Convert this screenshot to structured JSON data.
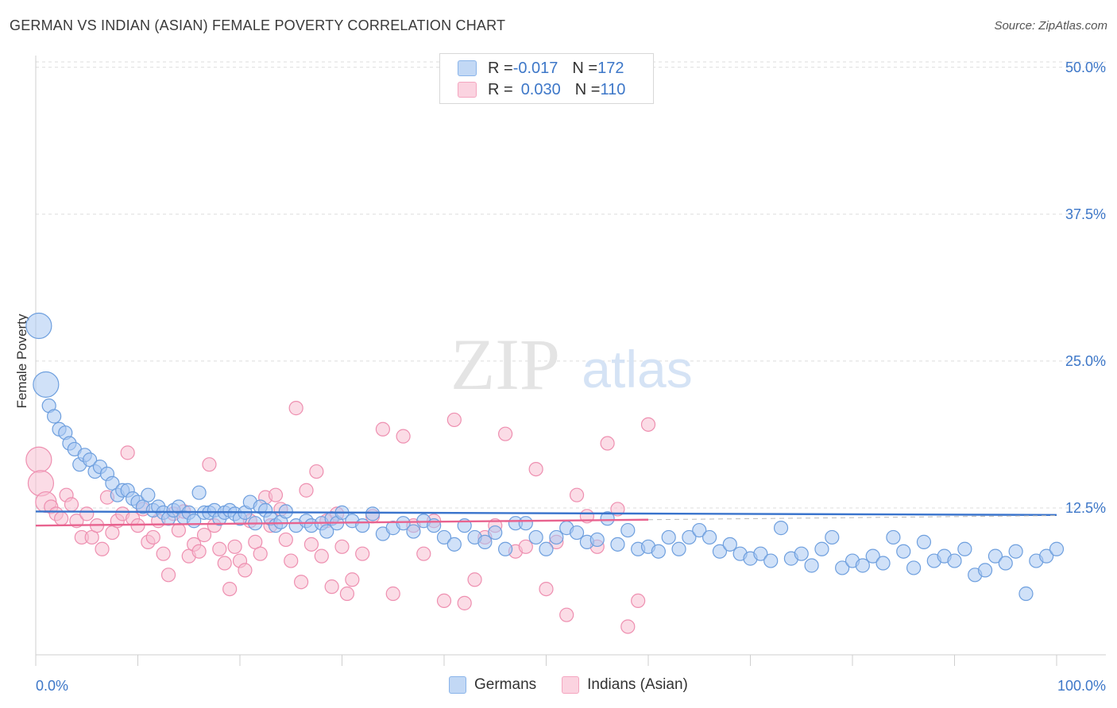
{
  "title": "GERMAN VS INDIAN (ASIAN) FEMALE POVERTY CORRELATION CHART",
  "source": "Source: ZipAtlas.com",
  "watermark": {
    "zip": "ZIP",
    "atlas": "atlas"
  },
  "legend": {
    "rows": [
      {
        "r_label": "R = ",
        "r_value": "-0.017",
        "n_label": "N = ",
        "n_value": "172",
        "color": "#8ab4ea"
      },
      {
        "r_label": "R = ",
        "r_value": "0.030",
        "n_label": "N = ",
        "n_value": "110",
        "color": "#f4a6c0"
      }
    ]
  },
  "bottom_legend": [
    {
      "label": "Germans",
      "color": "#8ab4ea"
    },
    {
      "label": "Indians (Asian)",
      "color": "#f4a6c0"
    }
  ],
  "colors": {
    "blue_fill": "#a9c9f2",
    "blue_stroke": "#6e9fde",
    "blue_line": "#3a74cc",
    "pink_fill": "#f7bfd1",
    "pink_stroke": "#ee8fb0",
    "pink_line": "#e8638f",
    "axis_text": "#3d77c8",
    "grid": "#dddddd"
  },
  "chart_data": {
    "type": "scatter",
    "title": "GERMAN VS INDIAN (ASIAN) FEMALE POVERTY CORRELATION CHART",
    "xlabel": "",
    "ylabel": "Female Poverty",
    "x_ticks": [
      "0.0%",
      "100.0%"
    ],
    "y_ticks": [
      "12.5%",
      "25.0%",
      "37.5%",
      "50.0%"
    ],
    "y_tick_values": [
      12.5,
      25.0,
      37.5,
      50.0
    ],
    "xlim": [
      0,
      100
    ],
    "ylim": [
      0,
      51
    ],
    "grid": true,
    "legend_position": "top-center",
    "series": [
      {
        "name": "Germans",
        "r": -0.017,
        "n": 172,
        "trend": {
          "x": [
            0,
            100
          ],
          "y": [
            12.2,
            11.9
          ]
        },
        "points": [
          [
            0.3,
            28.0
          ],
          [
            1.0,
            23.0
          ],
          [
            1.3,
            21.2
          ],
          [
            1.8,
            20.3
          ],
          [
            2.3,
            19.2
          ],
          [
            2.9,
            18.9
          ],
          [
            3.3,
            18.0
          ],
          [
            3.8,
            17.5
          ],
          [
            4.3,
            16.2
          ],
          [
            4.8,
            17.0
          ],
          [
            5.3,
            16.6
          ],
          [
            5.8,
            15.6
          ],
          [
            6.3,
            16.0
          ],
          [
            7.0,
            15.4
          ],
          [
            7.5,
            14.6
          ],
          [
            8.0,
            13.6
          ],
          [
            8.5,
            14.0
          ],
          [
            9.0,
            14.0
          ],
          [
            9.5,
            13.3
          ],
          [
            10.0,
            13.0
          ],
          [
            10.5,
            12.6
          ],
          [
            11.0,
            13.6
          ],
          [
            11.5,
            12.3
          ],
          [
            12.0,
            12.6
          ],
          [
            12.5,
            12.1
          ],
          [
            13.0,
            11.6
          ],
          [
            13.5,
            12.3
          ],
          [
            14.0,
            12.6
          ],
          [
            14.5,
            11.7
          ],
          [
            15.0,
            12.1
          ],
          [
            15.5,
            11.4
          ],
          [
            16.0,
            13.8
          ],
          [
            16.5,
            12.1
          ],
          [
            17.0,
            12.1
          ],
          [
            17.5,
            12.3
          ],
          [
            18.0,
            11.6
          ],
          [
            18.5,
            12.1
          ],
          [
            19.0,
            12.3
          ],
          [
            19.5,
            12.0
          ],
          [
            20.0,
            11.6
          ],
          [
            20.5,
            12.1
          ],
          [
            21.0,
            13.0
          ],
          [
            21.5,
            11.2
          ],
          [
            22.0,
            12.6
          ],
          [
            22.5,
            12.3
          ],
          [
            23.0,
            11.6
          ],
          [
            23.5,
            11.0
          ],
          [
            24.0,
            11.3
          ],
          [
            24.5,
            12.2
          ],
          [
            25.5,
            11.0
          ],
          [
            26.5,
            11.4
          ],
          [
            27.0,
            11.0
          ],
          [
            28.0,
            11.2
          ],
          [
            28.5,
            10.5
          ],
          [
            29.0,
            11.6
          ],
          [
            29.5,
            11.2
          ],
          [
            30.0,
            12.1
          ],
          [
            31.0,
            11.4
          ],
          [
            32.0,
            11.0
          ],
          [
            33.0,
            12.0
          ],
          [
            34.0,
            10.3
          ],
          [
            35.0,
            10.8
          ],
          [
            36.0,
            11.2
          ],
          [
            37.0,
            10.5
          ],
          [
            38.0,
            11.4
          ],
          [
            39.0,
            11.0
          ],
          [
            40.0,
            10.0
          ],
          [
            41.0,
            9.4
          ],
          [
            42.0,
            11.0
          ],
          [
            43.0,
            10.0
          ],
          [
            44.0,
            9.6
          ],
          [
            45.0,
            10.4
          ],
          [
            46.0,
            9.0
          ],
          [
            47.0,
            11.2
          ],
          [
            48.0,
            11.2
          ],
          [
            49.0,
            10.0
          ],
          [
            50.0,
            9.0
          ],
          [
            51.0,
            10.0
          ],
          [
            52.0,
            10.8
          ],
          [
            53.0,
            10.4
          ],
          [
            54.0,
            9.6
          ],
          [
            55.0,
            9.8
          ],
          [
            56.0,
            11.6
          ],
          [
            57.0,
            9.4
          ],
          [
            58.0,
            10.6
          ],
          [
            59.0,
            9.0
          ],
          [
            60.0,
            9.2
          ],
          [
            61.0,
            8.8
          ],
          [
            62.0,
            10.0
          ],
          [
            63.0,
            9.0
          ],
          [
            64.0,
            10.0
          ],
          [
            65.0,
            10.6
          ],
          [
            66.0,
            10.0
          ],
          [
            67.0,
            8.8
          ],
          [
            68.0,
            9.4
          ],
          [
            69.0,
            8.6
          ],
          [
            70.0,
            8.2
          ],
          [
            71.0,
            8.6
          ],
          [
            72.0,
            8.0
          ],
          [
            73.0,
            10.8
          ],
          [
            74.0,
            8.2
          ],
          [
            75.0,
            8.6
          ],
          [
            76.0,
            7.6
          ],
          [
            77.0,
            9.0
          ],
          [
            78.0,
            10.0
          ],
          [
            79.0,
            7.4
          ],
          [
            80.0,
            8.0
          ],
          [
            81.0,
            7.6
          ],
          [
            82.0,
            8.4
          ],
          [
            83.0,
            7.8
          ],
          [
            84.0,
            10.0
          ],
          [
            85.0,
            8.8
          ],
          [
            86.0,
            7.4
          ],
          [
            87.0,
            9.6
          ],
          [
            88.0,
            8.0
          ],
          [
            89.0,
            8.4
          ],
          [
            90.0,
            8.0
          ],
          [
            91.0,
            9.0
          ],
          [
            92.0,
            6.8
          ],
          [
            93.0,
            7.2
          ],
          [
            94.0,
            8.4
          ],
          [
            95.0,
            7.8
          ],
          [
            96.0,
            8.8
          ],
          [
            97.0,
            5.2
          ],
          [
            98.0,
            8.0
          ],
          [
            99.0,
            8.4
          ],
          [
            100.0,
            9.0
          ]
        ]
      },
      {
        "name": "Indians (Asian)",
        "r": 0.03,
        "n": 110,
        "trend": {
          "x": [
            0,
            60
          ],
          "y": [
            11.0,
            11.5
          ]
        },
        "points": [
          [
            0.3,
            16.6
          ],
          [
            0.5,
            14.6
          ],
          [
            1.0,
            13.0
          ],
          [
            1.5,
            12.6
          ],
          [
            2.0,
            12.0
          ],
          [
            2.5,
            11.6
          ],
          [
            3.0,
            13.6
          ],
          [
            3.5,
            12.8
          ],
          [
            4.0,
            11.4
          ],
          [
            4.5,
            10.0
          ],
          [
            5.0,
            12.0
          ],
          [
            5.5,
            10.0
          ],
          [
            6.0,
            11.0
          ],
          [
            6.5,
            9.0
          ],
          [
            7.0,
            13.4
          ],
          [
            7.5,
            10.4
          ],
          [
            8.0,
            11.4
          ],
          [
            8.5,
            12.0
          ],
          [
            9.0,
            17.2
          ],
          [
            9.5,
            11.6
          ],
          [
            10.0,
            11.0
          ],
          [
            10.5,
            12.4
          ],
          [
            11.0,
            9.6
          ],
          [
            11.5,
            10.0
          ],
          [
            12.0,
            11.4
          ],
          [
            12.5,
            8.6
          ],
          [
            13.0,
            6.8
          ],
          [
            13.5,
            12.0
          ],
          [
            14.0,
            10.6
          ],
          [
            14.5,
            12.2
          ],
          [
            15.0,
            8.4
          ],
          [
            15.5,
            9.4
          ],
          [
            16.0,
            8.8
          ],
          [
            16.5,
            10.2
          ],
          [
            17.0,
            16.2
          ],
          [
            17.5,
            11.0
          ],
          [
            18.0,
            9.0
          ],
          [
            18.5,
            7.8
          ],
          [
            19.0,
            5.6
          ],
          [
            19.5,
            9.2
          ],
          [
            20.0,
            8.0
          ],
          [
            20.5,
            7.2
          ],
          [
            21.0,
            11.4
          ],
          [
            21.5,
            9.6
          ],
          [
            22.0,
            8.6
          ],
          [
            22.5,
            13.4
          ],
          [
            23.0,
            11.0
          ],
          [
            23.5,
            13.6
          ],
          [
            24.0,
            12.4
          ],
          [
            24.5,
            9.8
          ],
          [
            25.0,
            8.0
          ],
          [
            25.5,
            21.0
          ],
          [
            26.0,
            6.2
          ],
          [
            26.5,
            14.0
          ],
          [
            27.0,
            9.4
          ],
          [
            27.5,
            15.6
          ],
          [
            28.0,
            8.4
          ],
          [
            28.5,
            11.4
          ],
          [
            29.0,
            5.8
          ],
          [
            29.5,
            12.0
          ],
          [
            30.0,
            9.2
          ],
          [
            30.5,
            5.2
          ],
          [
            31.0,
            6.4
          ],
          [
            32.0,
            8.6
          ],
          [
            33.0,
            11.8
          ],
          [
            34.0,
            19.2
          ],
          [
            35.0,
            5.2
          ],
          [
            36.0,
            18.6
          ],
          [
            37.0,
            11.0
          ],
          [
            38.0,
            8.6
          ],
          [
            39.0,
            11.4
          ],
          [
            40.0,
            4.6
          ],
          [
            41.0,
            20.0
          ],
          [
            42.0,
            4.4
          ],
          [
            43.0,
            6.4
          ],
          [
            44.0,
            10.0
          ],
          [
            45.0,
            11.0
          ],
          [
            46.0,
            18.8
          ],
          [
            47.0,
            8.8
          ],
          [
            48.0,
            9.2
          ],
          [
            49.0,
            15.8
          ],
          [
            50.0,
            5.6
          ],
          [
            51.0,
            9.6
          ],
          [
            52.0,
            3.4
          ],
          [
            53.0,
            13.6
          ],
          [
            54.0,
            11.8
          ],
          [
            55.0,
            9.2
          ],
          [
            56.0,
            18.0
          ],
          [
            57.0,
            12.4
          ],
          [
            58.0,
            2.4
          ],
          [
            59.0,
            4.6
          ],
          [
            60.0,
            19.6
          ]
        ]
      }
    ]
  }
}
